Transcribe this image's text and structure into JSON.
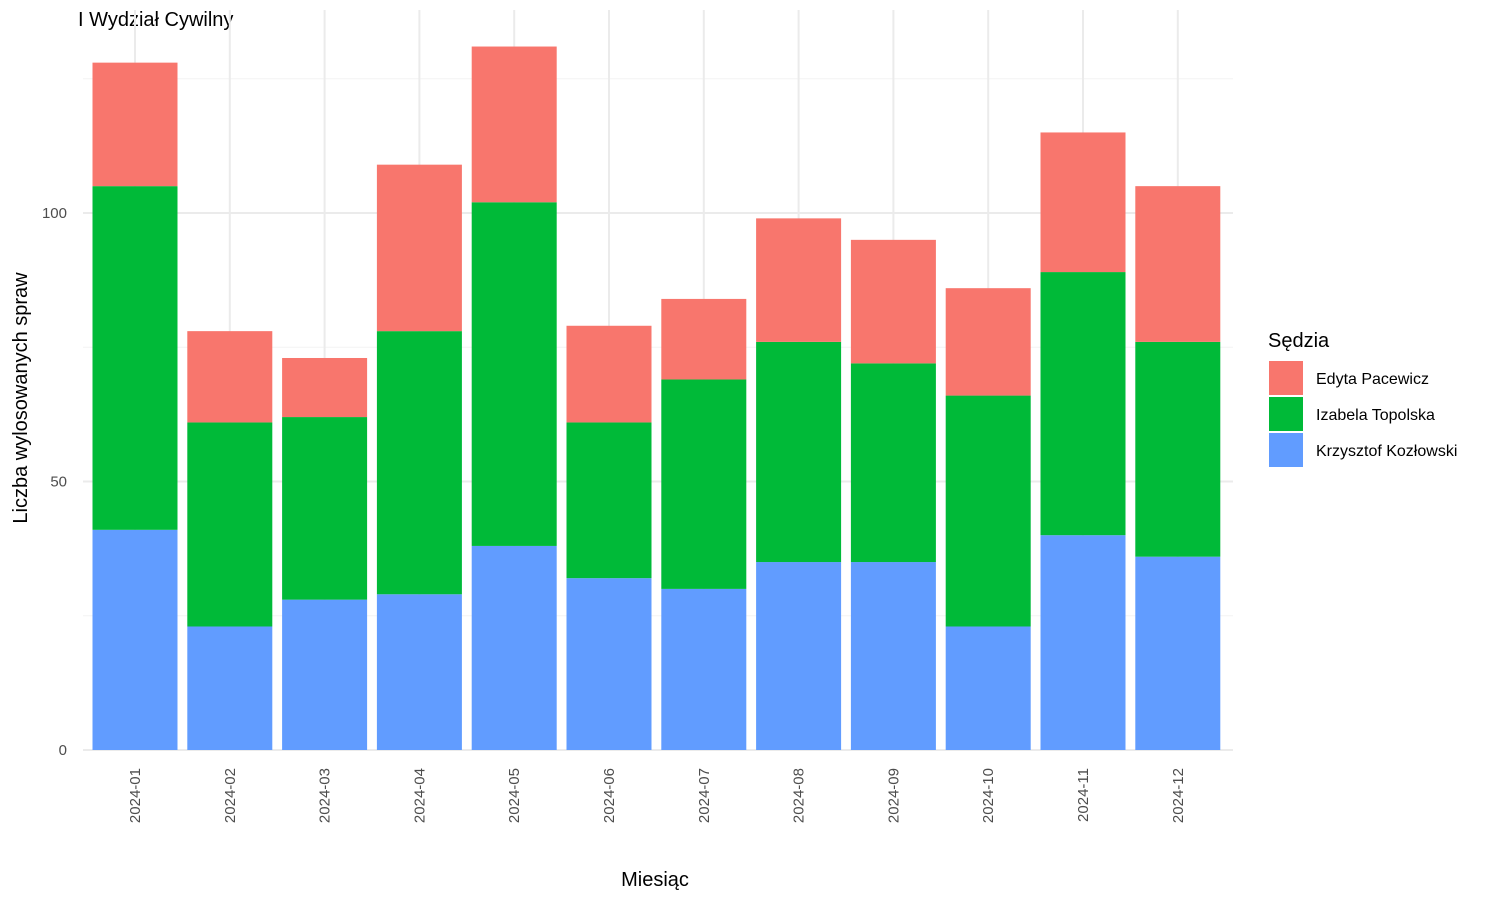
{
  "chart_data": {
    "type": "bar",
    "stacked": true,
    "title": "I Wydział Cywilny",
    "xlabel": "Miesiąc",
    "ylabel": "Liczba wylosowanych spraw",
    "ylim": [
      0,
      130
    ],
    "yticks": [
      0,
      50,
      100
    ],
    "grid": true,
    "legend_position": "right",
    "legend_title": "Sędzia",
    "categories": [
      "2024-01",
      "2024-02",
      "2024-03",
      "2024-04",
      "2024-05",
      "2024-06",
      "2024-07",
      "2024-08",
      "2024-09",
      "2024-10",
      "2024-11",
      "2024-12"
    ],
    "series": [
      {
        "name": "Krzysztof Kozłowski",
        "color": "#619cff",
        "values": [
          41,
          23,
          28,
          29,
          38,
          32,
          30,
          35,
          35,
          23,
          40,
          36
        ]
      },
      {
        "name": "Izabela Topolska",
        "color": "#00ba38",
        "values": [
          64,
          38,
          34,
          49,
          64,
          29,
          39,
          41,
          37,
          43,
          49,
          40
        ]
      },
      {
        "name": "Edyta Pacewicz",
        "color": "#f8766d",
        "values": [
          23,
          17,
          11,
          31,
          29,
          18,
          15,
          23,
          23,
          20,
          26,
          29
        ]
      }
    ],
    "legend_order": [
      "Edyta Pacewicz",
      "Izabela Topolska",
      "Krzysztof Kozłowski"
    ]
  }
}
